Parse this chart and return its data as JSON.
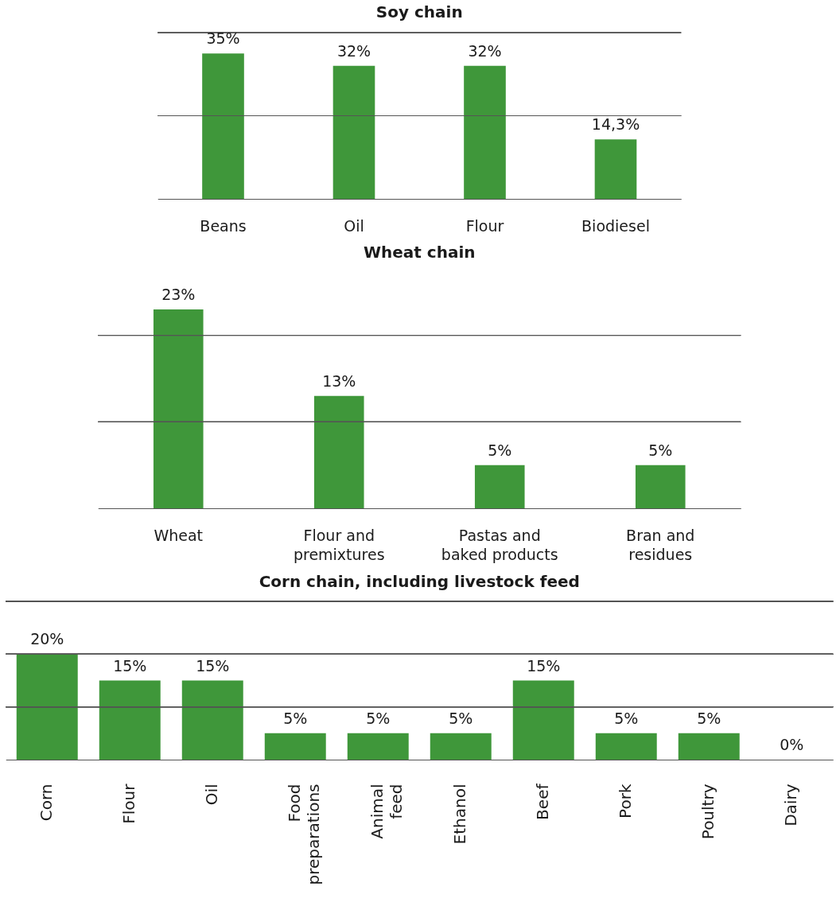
{
  "chart_data": [
    {
      "type": "bar",
      "title": "Soy chain",
      "categories": [
        "Beans",
        "Oil",
        "Flour",
        "Biodiesel"
      ],
      "values": [
        35,
        32,
        32,
        14.3
      ],
      "value_labels": [
        "35%",
        "32%",
        "32%",
        "14,3%"
      ],
      "color": "#3f973a",
      "ylim": [
        0,
        40
      ],
      "ref_lines": [
        {
          "axis": "y",
          "value": 20
        },
        {
          "axis": "y",
          "value": 40
        }
      ]
    },
    {
      "type": "bar",
      "title": "Wheat chain",
      "categories": [
        "Wheat",
        "Flour and premixtures",
        "Pastas and baked products",
        "Bran and residues"
      ],
      "values": [
        23,
        13,
        5,
        5
      ],
      "value_labels": [
        "23%",
        "13%",
        "5%",
        "5%"
      ],
      "color": "#3f973a",
      "ref_lines": [
        {
          "axis": "y",
          "value": 10
        },
        {
          "axis": "y",
          "value": 20
        }
      ]
    },
    {
      "type": "bar",
      "title": "Corn chain, including livestock feed",
      "categories": [
        "Corn",
        "Flour",
        "Oil",
        "Food preparations",
        "Animal feed",
        "Ethanol",
        "Beef",
        "Pork",
        "Poultry",
        "Dairy"
      ],
      "values": [
        20,
        15,
        15,
        5,
        5,
        5,
        15,
        5,
        5,
        0
      ],
      "value_labels": [
        "20%",
        "15%",
        "15%",
        "5%",
        "5%",
        "5%",
        "15%",
        "5%",
        "5%",
        "0%"
      ],
      "color": "#3f973a",
      "ylim": [
        0,
        30
      ],
      "ref_lines": [
        {
          "axis": "y",
          "value": 10
        },
        {
          "axis": "y",
          "value": 20
        },
        {
          "axis": "y",
          "value": 30
        }
      ]
    }
  ]
}
